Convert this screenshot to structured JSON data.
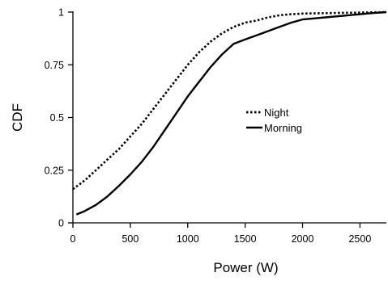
{
  "chart_data": {
    "type": "line",
    "title": "",
    "xlabel": "Power (W)",
    "ylabel": "CDF",
    "xlim": [
      0,
      2730
    ],
    "ylim": [
      0,
      1
    ],
    "xticks": [
      0,
      500,
      1000,
      1500,
      2000,
      2500
    ],
    "xtick_labels": [
      "0",
      "500",
      "1000",
      "1500",
      "2000",
      "2500"
    ],
    "yticks": [
      0,
      0.25,
      0.5,
      0.75,
      1
    ],
    "ytick_labels": [
      "0",
      "0.25",
      "0.5",
      "0.75",
      "1"
    ],
    "grid": false,
    "legend_position": "center-right",
    "series": [
      {
        "name": "Night",
        "style": "dotted",
        "color": "#000000",
        "x": [
          0,
          100,
          200,
          300,
          400,
          500,
          600,
          700,
          800,
          900,
          1000,
          1100,
          1200,
          1300,
          1400,
          1500,
          1600,
          1700,
          1800,
          1900,
          2000,
          2200,
          2400,
          2600,
          2730
        ],
        "y": [
          0.16,
          0.2,
          0.25,
          0.3,
          0.35,
          0.41,
          0.47,
          0.54,
          0.61,
          0.68,
          0.75,
          0.81,
          0.86,
          0.9,
          0.93,
          0.95,
          0.96,
          0.975,
          0.985,
          0.99,
          0.993,
          0.995,
          0.997,
          0.999,
          1.0
        ]
      },
      {
        "name": "Morning",
        "style": "solid",
        "color": "#000000",
        "x": [
          30,
          100,
          200,
          300,
          400,
          500,
          600,
          700,
          800,
          900,
          1000,
          1100,
          1200,
          1300,
          1400,
          1500,
          1600,
          1700,
          1800,
          1900,
          2000,
          2200,
          2400,
          2600,
          2730
        ],
        "y": [
          0.04,
          0.055,
          0.085,
          0.125,
          0.175,
          0.23,
          0.29,
          0.36,
          0.44,
          0.52,
          0.6,
          0.67,
          0.74,
          0.8,
          0.85,
          0.87,
          0.89,
          0.91,
          0.93,
          0.95,
          0.965,
          0.975,
          0.985,
          0.995,
          1.0
        ]
      }
    ]
  }
}
